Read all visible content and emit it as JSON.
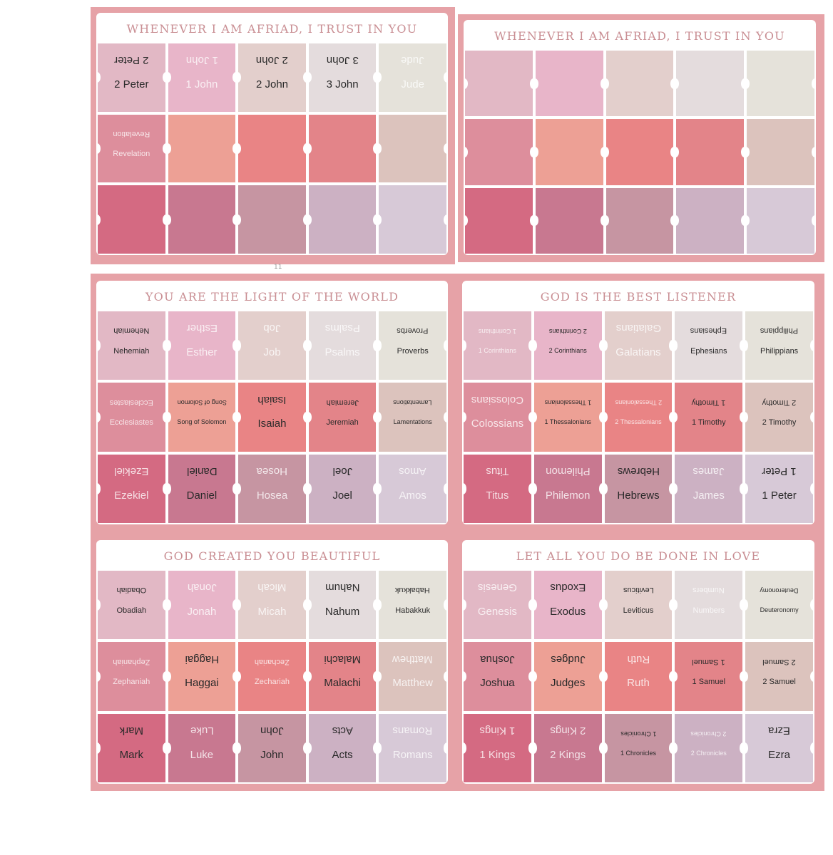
{
  "colors": {
    "sheet": "#e6a2a7",
    "rows": [
      [
        "#e2b8c5",
        "#e8b5c9",
        "#e3cfcc",
        "#e4dcdd",
        "#e5e2da"
      ],
      [
        "#dd8e9c",
        "#eda095",
        "#e98485",
        "#e38489",
        "#dcc3bd"
      ],
      [
        "#d46a82",
        "#c87890",
        "#c695a2",
        "#ccb1c3",
        "#d7c9d7"
      ]
    ]
  },
  "page_number": "11",
  "panels": [
    {
      "title": "WHENEVER I AM AFRIAD, I TRUST IN YOU",
      "tabs": [
        {
          "label": "2 Peter",
          "text": "dark"
        },
        {
          "label": "1 John",
          "text": "light"
        },
        {
          "label": "2 John",
          "text": "dark"
        },
        {
          "label": "3 John",
          "text": "dark"
        },
        {
          "label": "Jude",
          "text": "light"
        },
        {
          "label": "Revelation",
          "text": "light",
          "size": "small"
        },
        {
          "label": ""
        },
        {
          "label": ""
        },
        {
          "label": ""
        },
        {
          "label": ""
        },
        {
          "label": ""
        },
        {
          "label": ""
        },
        {
          "label": ""
        },
        {
          "label": ""
        },
        {
          "label": ""
        }
      ]
    },
    {
      "title": "WHENEVER I AM AFRIAD, I TRUST IN YOU",
      "tabs": [
        {
          "label": ""
        },
        {
          "label": ""
        },
        {
          "label": ""
        },
        {
          "label": ""
        },
        {
          "label": ""
        },
        {
          "label": ""
        },
        {
          "label": ""
        },
        {
          "label": ""
        },
        {
          "label": ""
        },
        {
          "label": ""
        },
        {
          "label": ""
        },
        {
          "label": ""
        },
        {
          "label": ""
        },
        {
          "label": ""
        },
        {
          "label": ""
        }
      ]
    },
    {
      "title": "YOU ARE THE LIGHT OF THE WORLD",
      "tabs": [
        {
          "label": "Nehemiah",
          "text": "dark",
          "size": "small"
        },
        {
          "label": "Esther",
          "text": "light"
        },
        {
          "label": "Job",
          "text": "light"
        },
        {
          "label": "Psalms",
          "text": "light"
        },
        {
          "label": "Proverbs",
          "text": "dark",
          "size": "small"
        },
        {
          "label": "Ecclesiastes",
          "text": "light",
          "size": "small"
        },
        {
          "label": "Song of Solomon",
          "text": "dark",
          "size": "xsmall"
        },
        {
          "label": "Isaiah",
          "text": "dark"
        },
        {
          "label": "Jeremiah",
          "text": "dark",
          "size": "small"
        },
        {
          "label": "Lamentations",
          "text": "dark",
          "size": "xsmall"
        },
        {
          "label": "Ezekiel",
          "text": "light"
        },
        {
          "label": "Daniel",
          "text": "dark"
        },
        {
          "label": "Hosea",
          "text": "light"
        },
        {
          "label": "Joel",
          "text": "dark"
        },
        {
          "label": "Amos",
          "text": "light"
        }
      ]
    },
    {
      "title": "GOD IS THE BEST LISTENER",
      "tabs": [
        {
          "label": "1 Corinthians",
          "text": "light",
          "size": "xsmall"
        },
        {
          "label": "2 Corinthians",
          "text": "dark",
          "size": "xsmall"
        },
        {
          "label": "Galatians",
          "text": "light"
        },
        {
          "label": "Ephesians",
          "text": "dark",
          "size": "small"
        },
        {
          "label": "Philippians",
          "text": "dark",
          "size": "small"
        },
        {
          "label": "Colossians",
          "text": "light"
        },
        {
          "label": "1 Thessalonians",
          "text": "dark",
          "size": "xsmall"
        },
        {
          "label": "2 Thessalonians",
          "text": "light",
          "size": "xsmall"
        },
        {
          "label": "1 Timothy",
          "text": "dark",
          "size": "small"
        },
        {
          "label": "2 Timothy",
          "text": "dark",
          "size": "small"
        },
        {
          "label": "Titus",
          "text": "light"
        },
        {
          "label": "Philemon",
          "text": "light"
        },
        {
          "label": "Hebrews",
          "text": "dark"
        },
        {
          "label": "James",
          "text": "light"
        },
        {
          "label": "1 Peter",
          "text": "dark"
        }
      ]
    },
    {
      "title": "GOD CREATED YOU BEAUTIFUL",
      "tabs": [
        {
          "label": "Obadiah",
          "text": "dark",
          "size": "small"
        },
        {
          "label": "Jonah",
          "text": "light"
        },
        {
          "label": "Micah",
          "text": "light"
        },
        {
          "label": "Nahum",
          "text": "dark"
        },
        {
          "label": "Habakkuk",
          "text": "dark",
          "size": "small"
        },
        {
          "label": "Zephaniah",
          "text": "light",
          "size": "small"
        },
        {
          "label": "Haggai",
          "text": "dark"
        },
        {
          "label": "Zechariah",
          "text": "light",
          "size": "small"
        },
        {
          "label": "Malachi",
          "text": "dark"
        },
        {
          "label": "Matthew",
          "text": "light"
        },
        {
          "label": "Mark",
          "text": "dark"
        },
        {
          "label": "Luke",
          "text": "light"
        },
        {
          "label": "John",
          "text": "dark"
        },
        {
          "label": "Acts",
          "text": "dark"
        },
        {
          "label": "Romans",
          "text": "light"
        }
      ]
    },
    {
      "title": "LET ALL YOU DO BE DONE IN LOVE",
      "tabs": [
        {
          "label": "Genesis",
          "text": "light"
        },
        {
          "label": "Exodus",
          "text": "dark"
        },
        {
          "label": "Leviticus",
          "text": "dark",
          "size": "small"
        },
        {
          "label": "Numbers",
          "text": "light",
          "size": "small"
        },
        {
          "label": "Deuteronomy",
          "text": "dark",
          "size": "xsmall"
        },
        {
          "label": "Joshua",
          "text": "dark"
        },
        {
          "label": "Judges",
          "text": "dark"
        },
        {
          "label": "Ruth",
          "text": "light"
        },
        {
          "label": "1 Samuel",
          "text": "dark",
          "size": "small"
        },
        {
          "label": "2 Samuel",
          "text": "dark",
          "size": "small"
        },
        {
          "label": "1 Kings",
          "text": "light"
        },
        {
          "label": "2 Kings",
          "text": "light"
        },
        {
          "label": "1 Chronicles",
          "text": "dark",
          "size": "xsmall"
        },
        {
          "label": "2 Chronicles",
          "text": "light",
          "size": "xsmall"
        },
        {
          "label": "Ezra",
          "text": "dark"
        }
      ]
    }
  ]
}
